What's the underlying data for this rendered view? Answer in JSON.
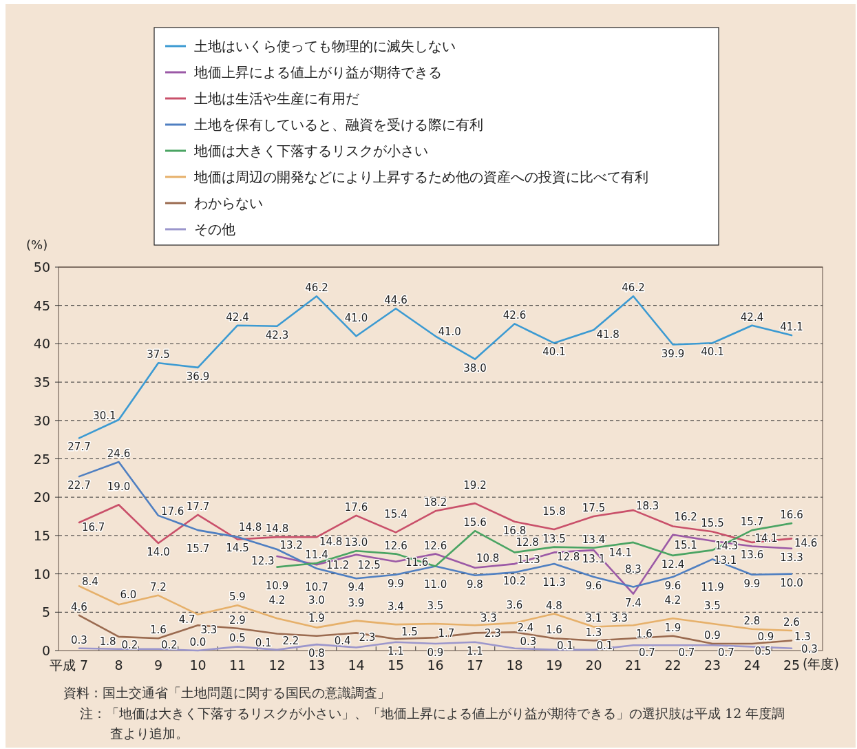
{
  "chart_data": {
    "type": "line",
    "ylabel": "(%)",
    "xlabel": "(年度)",
    "categories": [
      "平成 7",
      "8",
      "9",
      "10",
      "11",
      "12",
      "13",
      "14",
      "15",
      "16",
      "17",
      "18",
      "19",
      "20",
      "21",
      "22",
      "23",
      "24",
      "25"
    ],
    "ylim": [
      0,
      50
    ],
    "yticks": [
      0,
      5,
      10,
      15,
      20,
      25,
      30,
      35,
      40,
      45,
      50
    ],
    "grid": "y",
    "legend": "top",
    "marker": "none",
    "line_style": "solid",
    "series": [
      {
        "name": "土地はいくら使っても物理的に滅失しない",
        "color": "#3b9ad2",
        "values": [
          27.7,
          30.1,
          37.5,
          36.9,
          42.4,
          42.3,
          46.2,
          41.0,
          44.6,
          41.0,
          38.0,
          42.6,
          40.1,
          41.8,
          46.2,
          39.9,
          40.1,
          42.4,
          41.1
        ],
        "value_labels": [
          "27.7",
          "30.1",
          "37.5",
          "36.9",
          "42.4",
          "42.3",
          "46.2",
          "41.0",
          "44.6",
          "41.0",
          "38.0",
          "42.6",
          "40.1",
          "41.8",
          "46.2",
          "39.9",
          "40.1",
          "42.4",
          "41.1"
        ]
      },
      {
        "name": "地価上昇による値上がり益が期待できる",
        "color": "#9b59a6",
        "values": [
          null,
          null,
          null,
          null,
          null,
          12.3,
          11.2,
          12.5,
          11.6,
          12.6,
          10.8,
          11.3,
          12.8,
          13.1,
          7.4,
          15.1,
          14.3,
          13.6,
          13.3
        ],
        "value_labels": [
          null,
          null,
          null,
          null,
          null,
          "12.3",
          "11.2",
          "12.5",
          "11.6",
          "12.6",
          "10.8",
          "11.3",
          "12.8",
          "13.1",
          "7.4",
          "15.1",
          "14.3",
          "13.6",
          "13.3"
        ]
      },
      {
        "name": "土地は生活や生産に有用だ",
        "color": "#c9506a",
        "values": [
          16.7,
          19.0,
          14.0,
          17.7,
          14.5,
          14.8,
          14.8,
          17.6,
          15.4,
          18.2,
          19.2,
          16.8,
          15.8,
          17.5,
          18.3,
          16.2,
          15.5,
          14.1,
          14.6
        ],
        "value_labels": [
          "16.7",
          "19.0",
          "14.0",
          "17.7",
          "14.5",
          "14.8",
          "14.8",
          "17.6",
          "15.4",
          "18.2",
          "19.2",
          "16.8",
          "15.8",
          "17.5",
          "18.3",
          "16.2",
          "15.5",
          "14.1",
          "14.6"
        ]
      },
      {
        "name": "土地を保有していると、融資を受ける際に有利",
        "color": "#4f7fc1",
        "values": [
          22.7,
          24.6,
          17.6,
          15.7,
          14.8,
          13.2,
          10.7,
          9.4,
          9.9,
          11.0,
          9.8,
          10.2,
          11.3,
          9.6,
          8.3,
          9.6,
          11.9,
          9.9,
          10.0
        ],
        "value_labels": [
          "22.7",
          "24.6",
          "17.6",
          "15.7",
          "14.8",
          "13.2",
          "10.7",
          "9.4",
          "9.9",
          null,
          "9.8",
          "10.2",
          "11.3",
          "9.6",
          "8.3",
          "9.6",
          "11.9",
          "9.9",
          "10.0"
        ]
      },
      {
        "name": "地価は大きく下落するリスクが小さい",
        "color": "#4aa463",
        "values": [
          null,
          null,
          null,
          null,
          null,
          10.9,
          11.4,
          13.0,
          12.6,
          11.0,
          15.6,
          12.8,
          13.5,
          13.4,
          14.1,
          12.4,
          13.1,
          15.7,
          16.6
        ],
        "value_labels": [
          null,
          null,
          null,
          null,
          null,
          "10.9",
          "11.4",
          "13.0",
          "12.6",
          "11.0",
          "15.6",
          "12.8",
          "13.5",
          "13.4",
          "14.1",
          "12.4",
          "13.1",
          "15.7",
          "16.6"
        ]
      },
      {
        "name": "地価は周辺の開発などにより上昇するため他の資産への投資に比べて有利",
        "color": "#e6b06a",
        "values": [
          8.4,
          6.0,
          7.2,
          4.7,
          5.9,
          4.2,
          3.0,
          3.9,
          3.4,
          3.5,
          3.3,
          3.6,
          4.8,
          3.1,
          3.3,
          4.2,
          3.5,
          2.8,
          2.6
        ],
        "value_labels": [
          "8.4",
          "6.0",
          "7.2",
          "4.7",
          "5.9",
          "4.2",
          "3.0",
          "3.9",
          "3.4",
          "3.5",
          "3.3",
          "3.6",
          "4.8",
          "3.1",
          "3.3",
          "4.2",
          "3.5",
          "2.8",
          "2.6"
        ]
      },
      {
        "name": "わからない",
        "color": "#9a6a4f",
        "values": [
          4.6,
          1.8,
          1.6,
          3.3,
          2.9,
          2.2,
          1.9,
          2.3,
          1.5,
          1.7,
          2.3,
          2.4,
          1.6,
          1.3,
          1.6,
          1.9,
          0.9,
          0.9,
          1.3
        ],
        "value_labels": [
          "4.6",
          "1.8",
          "1.6",
          "3.3",
          "2.9",
          "2.2",
          "1.9",
          "2.3",
          "1.5",
          "1.7",
          "2.3",
          "2.4",
          "1.6",
          "1.3",
          "1.6",
          "1.9",
          "0.9",
          "0.9",
          "1.3"
        ]
      },
      {
        "name": "その他",
        "color": "#9b96cc",
        "values": [
          0.3,
          0.2,
          0.2,
          0.0,
          0.5,
          0.1,
          0.8,
          0.4,
          1.1,
          0.9,
          1.1,
          0.3,
          0.1,
          0.1,
          0.7,
          0.7,
          0.7,
          0.5,
          0.3
        ],
        "value_labels": [
          "0.3",
          "0.2",
          "0.2",
          "0.0",
          "0.5",
          "0.1",
          "0.8",
          "0.4",
          "1.1",
          "0.9",
          "1.1",
          "0.3",
          "0.1",
          "0.1",
          "0.7",
          "0.7",
          "0.7",
          "0.5",
          "0.3"
        ]
      }
    ],
    "annotations": [
      "資料：国土交通省「土地問題に関する国民の意識調査」",
      "注：「地価は大きく下落するリスクが小さい」、「地価上昇による値上がり益が期待できる」の選択肢は平成 12 年度調査より追加。"
    ]
  }
}
